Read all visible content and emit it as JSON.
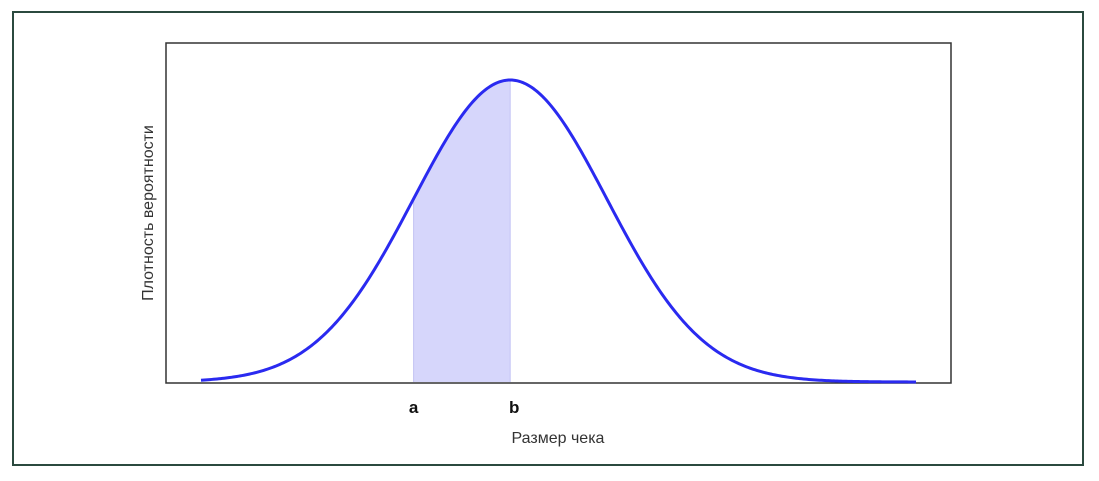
{
  "chart_data": {
    "type": "area",
    "title": "",
    "xlabel": "Размер чека",
    "ylabel": "Плотность вероятности",
    "curve": {
      "distribution": "normal",
      "mean": 0,
      "std": 1,
      "xlim": [
        -3.2,
        4.2
      ],
      "color": "#2a2af0"
    },
    "shaded_region": {
      "from_label": "a",
      "to_label": "b",
      "from": -1.0,
      "to": 0.0,
      "fill_color": "#d6d6fb"
    },
    "x_tick_labels": [
      "a",
      "b"
    ],
    "grid": false,
    "legend": "none"
  }
}
